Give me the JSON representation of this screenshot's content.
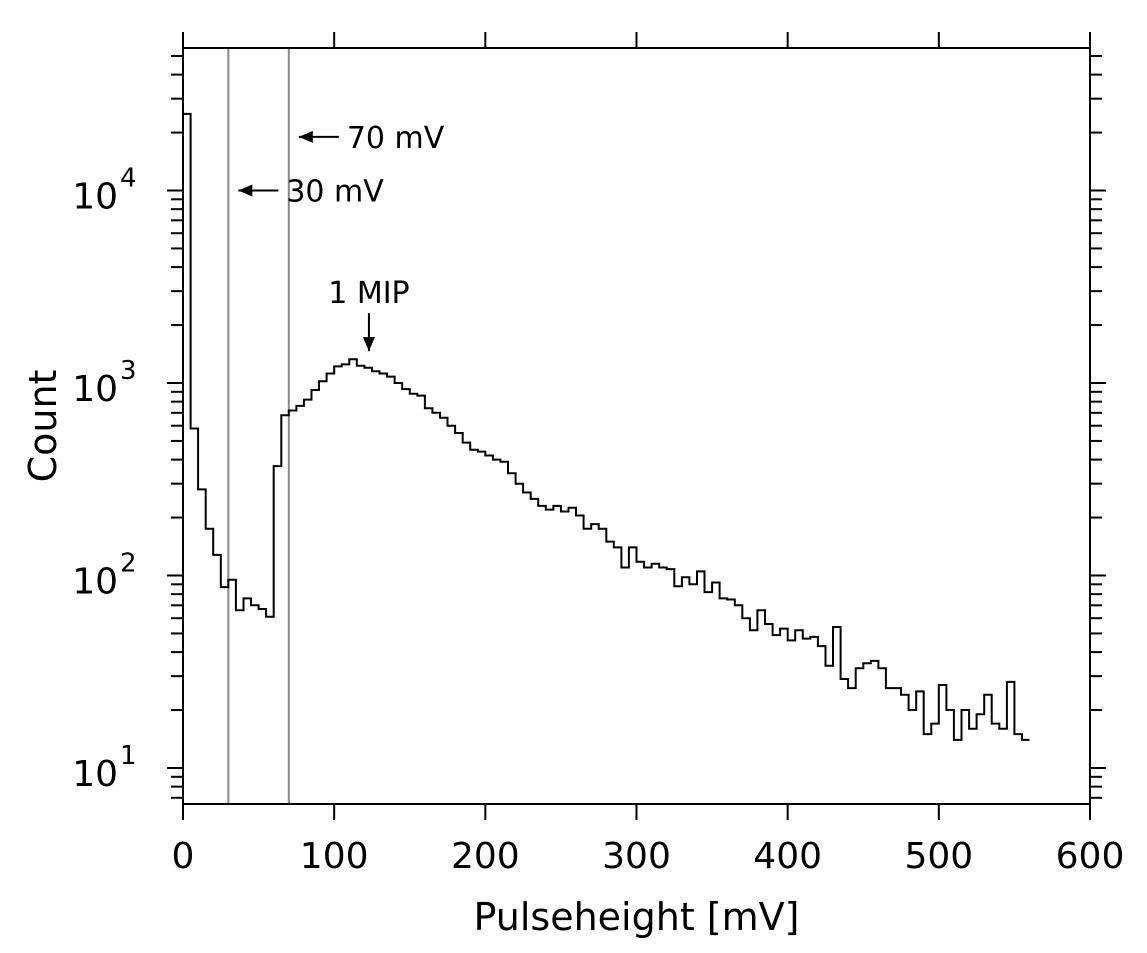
{
  "chart_data": {
    "type": "histogram",
    "xlabel": "Pulseheight [mV]",
    "ylabel": "Count",
    "xlim": [
      0,
      600
    ],
    "ylim": [
      6.5,
      55000
    ],
    "yscale": "log",
    "x_ticks": [
      0,
      100,
      200,
      300,
      400,
      500,
      600
    ],
    "x_tick_labels": [
      "0",
      "100",
      "200",
      "300",
      "400",
      "500",
      "600"
    ],
    "y_ticks": [
      {
        "value": 10,
        "base": "10",
        "exp": "1"
      },
      {
        "value": 100,
        "base": "10",
        "exp": "2"
      },
      {
        "value": 1000,
        "base": "10",
        "exp": "3"
      },
      {
        "value": 10000,
        "base": "10",
        "exp": "4"
      }
    ],
    "grid": false,
    "bin_width": 5,
    "bin_start": 0,
    "counts": [
      25000,
      580,
      280,
      175,
      128,
      87,
      95,
      66,
      76,
      70,
      67,
      61,
      370,
      680,
      720,
      760,
      820,
      920,
      1020,
      1120,
      1220,
      1250,
      1330,
      1230,
      1200,
      1150,
      1120,
      1080,
      1000,
      930,
      880,
      860,
      740,
      700,
      660,
      600,
      550,
      490,
      450,
      440,
      420,
      400,
      390,
      340,
      300,
      270,
      250,
      230,
      220,
      230,
      215,
      225,
      205,
      175,
      185,
      175,
      150,
      140,
      110,
      140,
      118,
      110,
      115,
      110,
      108,
      88,
      98,
      90,
      105,
      82,
      92,
      76,
      75,
      70,
      60,
      52,
      66,
      56,
      49,
      53,
      46,
      52,
      47,
      48,
      43,
      34,
      54,
      29,
      26,
      33,
      35,
      36,
      33,
      26,
      26,
      24,
      20,
      25,
      15,
      17,
      27,
      20,
      14,
      20,
      16,
      19,
      24,
      17,
      16,
      28,
      15,
      14
    ],
    "vertical_lines": [
      {
        "x": 30,
        "color": "#888888"
      },
      {
        "x": 70,
        "color": "#888888"
      }
    ],
    "annotations": [
      {
        "text": "70 mV",
        "x": 70,
        "y": 19000,
        "arrow": "left"
      },
      {
        "text": "30 mV",
        "x": 30,
        "y": 10000,
        "arrow": "left"
      },
      {
        "text": "1 MIP",
        "x": 123,
        "y": 1330,
        "arrow": "down"
      }
    ]
  }
}
